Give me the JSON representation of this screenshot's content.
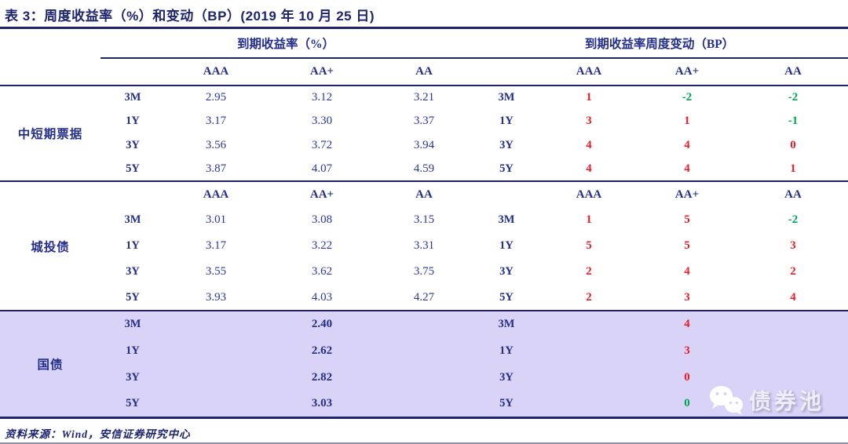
{
  "title": "表 3：周度收益率（%）和变动（BP）(2019 年 10 月 25 日)",
  "footer": {
    "source": "资料来源：Wind，安信证券研究中心"
  },
  "watermark": {
    "label": "债券池",
    "icon": "wechat-icon"
  },
  "colors": {
    "navy": "#232e8c",
    "line": "#1c2470",
    "red": "#ed1c24",
    "green": "#00a651",
    "highlight": "#d8d3f7"
  },
  "table": {
    "group_headers": [
      "到期收益率（%）",
      "到期收益率周度变动（BP）"
    ],
    "rating_headers": [
      "AAA",
      "AA+",
      "AA"
    ],
    "sections": [
      {
        "id": "mid-short-notes",
        "label": "中短期票据",
        "repeat_rating_header": false,
        "highlight": false,
        "bold_yields": false,
        "rows": [
          {
            "tenor": "3M",
            "yields": [
              "2.95",
              "3.12",
              "3.21"
            ],
            "changes": [
              {
                "v": "1",
                "c": "red"
              },
              {
                "v": "-2",
                "c": "green"
              },
              {
                "v": "-2",
                "c": "green"
              }
            ]
          },
          {
            "tenor": "1Y",
            "yields": [
              "3.17",
              "3.30",
              "3.37"
            ],
            "changes": [
              {
                "v": "3",
                "c": "red"
              },
              {
                "v": "1",
                "c": "red"
              },
              {
                "v": "-1",
                "c": "green"
              }
            ]
          },
          {
            "tenor": "3Y",
            "yields": [
              "3.56",
              "3.72",
              "3.94"
            ],
            "changes": [
              {
                "v": "4",
                "c": "red"
              },
              {
                "v": "4",
                "c": "red"
              },
              {
                "v": "0",
                "c": "red"
              }
            ]
          },
          {
            "tenor": "5Y",
            "yields": [
              "3.87",
              "4.07",
              "4.59"
            ],
            "changes": [
              {
                "v": "4",
                "c": "red"
              },
              {
                "v": "4",
                "c": "red"
              },
              {
                "v": "1",
                "c": "red"
              }
            ]
          }
        ]
      },
      {
        "id": "urban-investment-bonds",
        "label": "城投债",
        "repeat_rating_header": true,
        "highlight": false,
        "bold_yields": false,
        "rows": [
          {
            "tenor": "3M",
            "yields": [
              "3.01",
              "3.08",
              "3.15"
            ],
            "changes": [
              {
                "v": "1",
                "c": "red"
              },
              {
                "v": "5",
                "c": "red"
              },
              {
                "v": "-2",
                "c": "green"
              }
            ]
          },
          {
            "tenor": "1Y",
            "yields": [
              "3.17",
              "3.22",
              "3.31"
            ],
            "changes": [
              {
                "v": "5",
                "c": "red"
              },
              {
                "v": "5",
                "c": "red"
              },
              {
                "v": "3",
                "c": "red"
              }
            ]
          },
          {
            "tenor": "3Y",
            "yields": [
              "3.55",
              "3.62",
              "3.75"
            ],
            "changes": [
              {
                "v": "2",
                "c": "red"
              },
              {
                "v": "4",
                "c": "red"
              },
              {
                "v": "2",
                "c": "red"
              }
            ]
          },
          {
            "tenor": "5Y",
            "yields": [
              "3.93",
              "4.03",
              "4.27"
            ],
            "changes": [
              {
                "v": "2",
                "c": "red"
              },
              {
                "v": "3",
                "c": "red"
              },
              {
                "v": "4",
                "c": "red"
              }
            ]
          }
        ]
      },
      {
        "id": "treasury-bonds",
        "label": "国债",
        "repeat_rating_header": false,
        "highlight": true,
        "bold_yields": true,
        "rows": [
          {
            "tenor": "3M",
            "yields": [
              "",
              "2.40",
              ""
            ],
            "changes": [
              null,
              {
                "v": "4",
                "c": "red"
              },
              null
            ]
          },
          {
            "tenor": "1Y",
            "yields": [
              "",
              "2.62",
              ""
            ],
            "changes": [
              null,
              {
                "v": "3",
                "c": "red"
              },
              null
            ]
          },
          {
            "tenor": "3Y",
            "yields": [
              "",
              "2.82",
              ""
            ],
            "changes": [
              null,
              {
                "v": "0",
                "c": "red"
              },
              null
            ]
          },
          {
            "tenor": "5Y",
            "yields": [
              "",
              "3.03",
              ""
            ],
            "changes": [
              null,
              {
                "v": "0",
                "c": "green"
              },
              null
            ]
          }
        ]
      }
    ]
  }
}
